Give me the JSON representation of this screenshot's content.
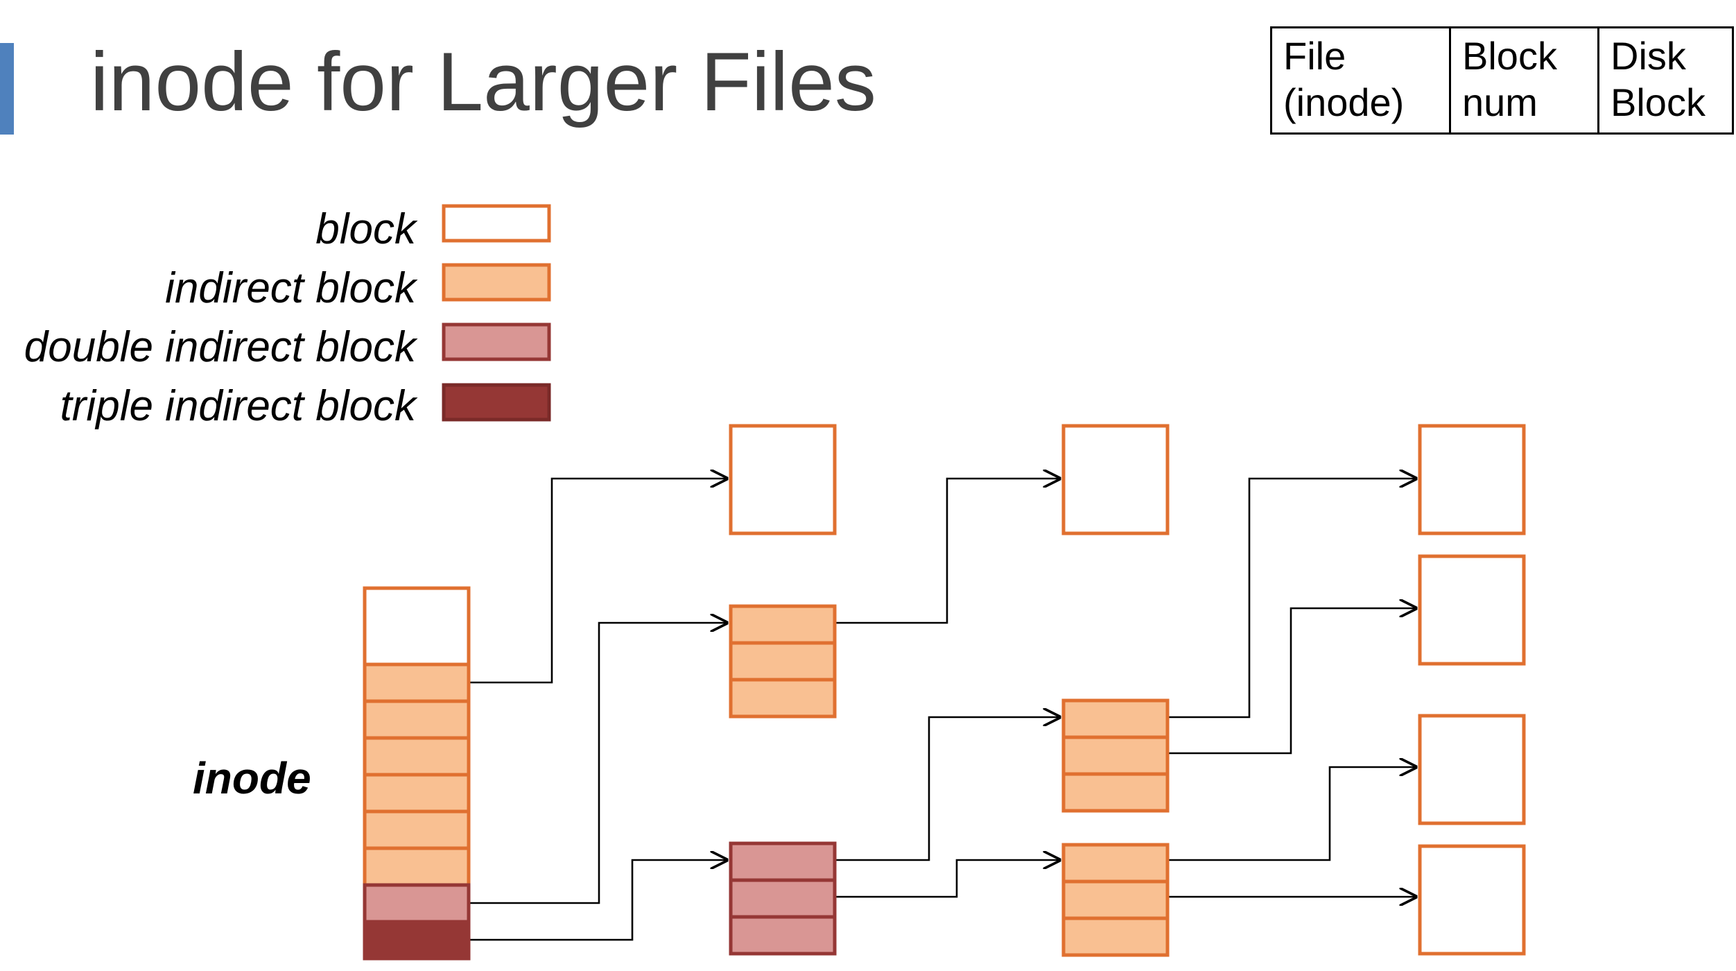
{
  "title": "inode for Larger Files",
  "key_table": {
    "headers": [
      "File\n(inode)",
      "Block\nnum",
      "Disk\nBlock"
    ]
  },
  "legend": {
    "items": [
      {
        "label": "block",
        "fill": "#ffffff",
        "stroke": "#e07030"
      },
      {
        "label": "indirect block",
        "fill": "#f9c092",
        "stroke": "#e07030"
      },
      {
        "label": "double indirect block",
        "fill": "#d99694",
        "stroke": "#953735"
      },
      {
        "label": "triple indirect block",
        "fill": "#953735",
        "stroke": "#7a2a28"
      }
    ]
  },
  "inode_label": "inode",
  "colors": {
    "accent": "#4f81bd",
    "title_text": "#404040",
    "block_stroke": "#e07030",
    "indirect_fill": "#f9c092",
    "double_fill": "#d99694",
    "double_stroke": "#953735",
    "triple_fill": "#953735",
    "arrow": "#000000"
  }
}
